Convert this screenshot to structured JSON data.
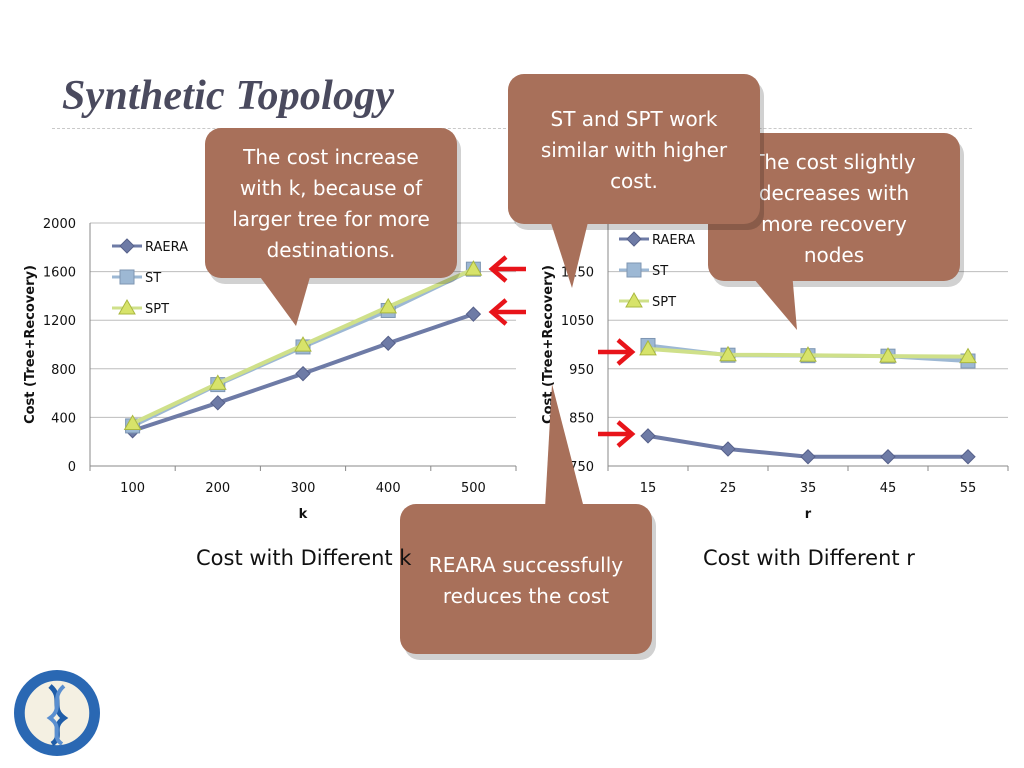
{
  "slide": {
    "title": "Synthetic Topology",
    "caption_left": "Cost with Different k",
    "caption_right": "Cost with Different r"
  },
  "callouts": {
    "k_increase": [
      "The cost increase",
      "with k, because of",
      "larger tree for more",
      "destinations."
    ],
    "st_spt": [
      "ST and SPT work",
      "similar with higher",
      "cost."
    ],
    "recovery": [
      "The cost slightly",
      "decreases with",
      "more recovery",
      "nodes"
    ],
    "reara": [
      "REARA successfully",
      "reduces the cost"
    ]
  },
  "colors": {
    "raera": "#6e7ba6",
    "st": "#9db8d4",
    "spt": "#cfe08a",
    "spt_marker": "#d7e36a",
    "callout_fill": "#a8705a",
    "arrow_red": "#e8141a"
  },
  "logo": {
    "name": "Academia Sinica seal"
  },
  "chart_data": [
    {
      "type": "line",
      "title": "Cost with Different k",
      "xlabel": "k",
      "ylabel": "Cost (Tree+Recovery)",
      "categories": [
        "100",
        "200",
        "300",
        "400",
        "500"
      ],
      "ylim": [
        0,
        2000
      ],
      "yticks": [
        "0",
        "400",
        "800",
        "1200",
        "1600",
        "2000"
      ],
      "series": [
        {
          "name": "RAERA",
          "values": [
            290,
            520,
            760,
            1010,
            1250
          ]
        },
        {
          "name": "ST",
          "values": [
            330,
            670,
            980,
            1280,
            1620
          ]
        },
        {
          "name": "SPT",
          "values": [
            350,
            680,
            995,
            1310,
            1620
          ]
        }
      ],
      "legend": "top-left"
    },
    {
      "type": "line",
      "title": "Cost with Different r",
      "xlabel": "r",
      "ylabel": "Cost (Tree+Recovery)",
      "categories": [
        "15",
        "25",
        "35",
        "45",
        "55"
      ],
      "ylim": [
        750,
        1250
      ],
      "yticks": [
        "750",
        "850",
        "950",
        "1050",
        "1150"
      ],
      "series": [
        {
          "name": "RAERA",
          "values": [
            812,
            785,
            769,
            769,
            769
          ]
        },
        {
          "name": "ST",
          "values": [
            998,
            978,
            977,
            976,
            966
          ]
        },
        {
          "name": "SPT",
          "values": [
            991,
            979,
            978,
            976,
            975
          ]
        }
      ],
      "legend": "top-left"
    }
  ]
}
